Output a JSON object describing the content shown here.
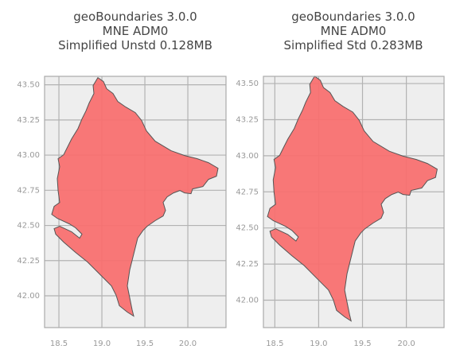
{
  "chart_data": [
    {
      "type": "map",
      "title": [
        "geoBoundaries 3.0.0",
        "MNE ADM0",
        "Simplified Unstd 0.128MB"
      ],
      "color": "#f87070",
      "grid": true,
      "xlim": [
        18.333,
        20.444
      ],
      "ylim": [
        41.774,
        43.56
      ],
      "xticks": [
        18.5,
        {
          "value": 19,
          "label": "19.0"
        },
        19.5,
        {
          "value": 20,
          "label": "20.0"
        }
      ],
      "yticks": [
        {
          "value": 42,
          "label": "42.00"
        },
        42.25,
        {
          "value": 42.5,
          "label": "42.50"
        },
        42.75,
        {
          "value": 43,
          "label": "43.00"
        },
        43.25,
        {
          "value": 43.5,
          "label": "43.50"
        }
      ]
    },
    {
      "type": "map",
      "title": [
        "geoBoundaries 3.0.0",
        "MNE ADM0",
        "Simplified Std 0.283MB"
      ],
      "color": "#f87070",
      "grid": true,
      "xlim": [
        18.37,
        20.43
      ],
      "ylim": [
        41.81,
        43.55
      ],
      "xticks": [
        18.5,
        {
          "value": 19,
          "label": "19.0"
        },
        19.5,
        {
          "value": 20,
          "label": "20.0"
        }
      ],
      "yticks": [
        {
          "value": 42,
          "label": "42.00"
        },
        42.25,
        {
          "value": 42.5,
          "label": "42.50"
        },
        42.75,
        {
          "value": 43,
          "label": "43.00"
        },
        43.25,
        {
          "value": 43.5,
          "label": "43.50"
        }
      ]
    }
  ]
}
